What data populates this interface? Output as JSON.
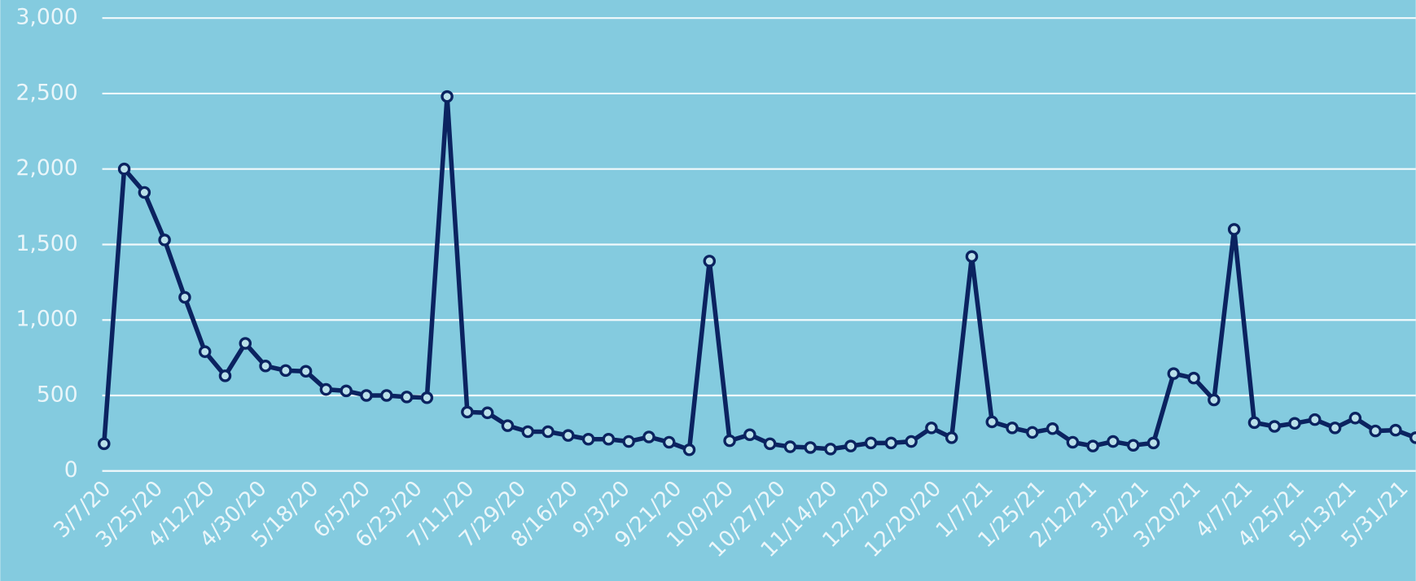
{
  "chart_data": {
    "type": "line",
    "x": [
      "3/7/20",
      "3/14/20",
      "3/21/20",
      "3/28/20",
      "4/4/20",
      "4/11/20",
      "4/18/20",
      "4/25/20",
      "5/2/20",
      "5/9/20",
      "5/16/20",
      "5/23/20",
      "5/30/20",
      "6/6/20",
      "6/13/20",
      "6/20/20",
      "6/27/20",
      "7/4/20",
      "7/11/20",
      "7/18/20",
      "7/25/20",
      "8/1/20",
      "8/8/20",
      "8/15/20",
      "8/22/20",
      "8/29/20",
      "9/5/20",
      "9/12/20",
      "9/19/20",
      "9/26/20",
      "10/3/20",
      "10/10/20",
      "10/17/20",
      "10/24/20",
      "10/31/20",
      "11/7/20",
      "11/14/20",
      "11/21/20",
      "11/28/20",
      "12/5/20",
      "12/12/20",
      "12/19/20",
      "12/26/20",
      "1/2/21",
      "1/9/21",
      "1/16/21",
      "1/23/21",
      "1/30/21",
      "2/6/21",
      "2/13/21",
      "2/20/21",
      "2/27/21",
      "3/6/21",
      "3/13/21",
      "3/20/21",
      "3/27/21",
      "4/3/21",
      "4/10/21",
      "4/17/21",
      "4/24/21",
      "5/1/21",
      "5/8/21",
      "5/15/21",
      "5/22/21",
      "5/29/21",
      "6/5/21"
    ],
    "values": [
      180,
      2000,
      1845,
      1530,
      1150,
      790,
      630,
      845,
      695,
      665,
      660,
      540,
      530,
      500,
      500,
      490,
      485,
      2480,
      390,
      385,
      300,
      260,
      260,
      235,
      210,
      210,
      195,
      225,
      190,
      140,
      1390,
      200,
      240,
      180,
      160,
      155,
      145,
      165,
      185,
      185,
      195,
      285,
      220,
      1420,
      325,
      285,
      255,
      280,
      190,
      165,
      195,
      170,
      185,
      645,
      615,
      470,
      1600,
      320,
      295,
      315,
      340,
      285,
      350,
      265,
      270,
      220
    ],
    "color": "#0b2360",
    "marker_fill": "#b9e0ea",
    "background": "#84cbdf",
    "xlim": [
      "3/7/20",
      "6/5/21"
    ],
    "xticks": [
      "3/7/20",
      "3/25/20",
      "4/12/20",
      "4/30/20",
      "5/18/20",
      "6/5/20",
      "6/23/20",
      "7/11/20",
      "7/29/20",
      "8/16/20",
      "9/3/20",
      "9/21/20",
      "10/9/20",
      "10/27/20",
      "11/14/20",
      "12/2/20",
      "12/20/20",
      "1/7/21",
      "1/25/21",
      "2/12/21",
      "3/2/21",
      "3/20/21",
      "4/7/21",
      "4/25/21",
      "5/13/21",
      "5/31/21"
    ],
    "ylim": [
      0,
      3000
    ],
    "yticks": [
      0,
      500,
      {
        "value": 1000,
        "label": "1,000"
      },
      {
        "value": 1500,
        "label": "1,500"
      },
      {
        "value": 2000,
        "label": "2,000"
      },
      {
        "value": 2500,
        "label": "2,500"
      },
      {
        "value": 3000,
        "label": "3,000"
      }
    ],
    "grid": true
  }
}
